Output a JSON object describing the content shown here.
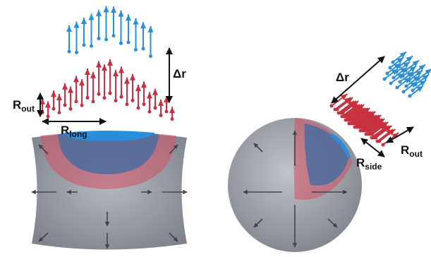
{
  "labels": [
    {
      "main": "R",
      "sub": "out"
    },
    {
      "main": "R",
      "sub": "long"
    },
    {
      "main": "Δr"
    },
    {
      "main": "Δr"
    },
    {
      "main": "R",
      "sub": "side"
    },
    {
      "main": "R",
      "sub": "out"
    }
  ]
}
